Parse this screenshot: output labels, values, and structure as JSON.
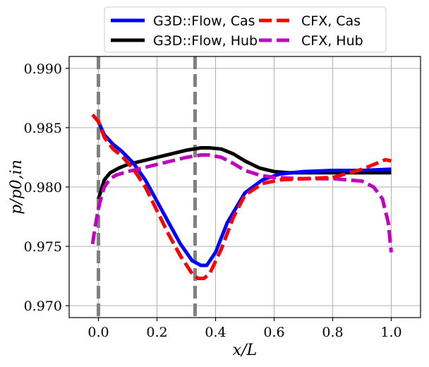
{
  "chart_data": {
    "type": "line",
    "xlabel": "x/L",
    "ylabel": "p/p0,in",
    "xlim": [
      -0.1,
      1.1
    ],
    "ylim": [
      0.969,
      0.991
    ],
    "xticks": [
      0.0,
      0.2,
      0.4,
      0.6,
      0.8,
      1.0
    ],
    "xtick_labels": [
      "0.0",
      "0.2",
      "0.4",
      "0.6",
      "0.8",
      "1.0"
    ],
    "yticks": [
      0.97,
      0.975,
      0.98,
      0.985,
      0.99
    ],
    "ytick_labels": [
      "0.970",
      "0.975",
      "0.980",
      "0.985",
      "0.990"
    ],
    "grid": true,
    "legend_position": "top-outside",
    "vertical_lines": [
      {
        "x": 0.0,
        "color": "#808080",
        "style": "dashed"
      },
      {
        "x": 0.33,
        "color": "#808080",
        "style": "dashed"
      }
    ],
    "series": [
      {
        "name": "G3D::Flow, Cas",
        "color": "#0000ff",
        "style": "solid",
        "x": [
          0.0,
          0.02,
          0.05,
          0.08,
          0.12,
          0.16,
          0.2,
          0.24,
          0.28,
          0.32,
          0.35,
          0.37,
          0.4,
          0.44,
          0.5,
          0.56,
          0.62,
          0.7,
          0.8,
          0.9,
          1.0
        ],
        "y": [
          0.9855,
          0.9844,
          0.9836,
          0.983,
          0.982,
          0.9806,
          0.9788,
          0.977,
          0.9752,
          0.9738,
          0.9734,
          0.9734,
          0.9745,
          0.977,
          0.9795,
          0.9806,
          0.9811,
          0.9813,
          0.9814,
          0.9814,
          0.9815
        ]
      },
      {
        "name": "G3D::Flow, Hub",
        "color": "#000000",
        "style": "solid",
        "x": [
          0.0,
          0.01,
          0.02,
          0.04,
          0.07,
          0.1,
          0.15,
          0.2,
          0.25,
          0.3,
          0.35,
          0.38,
          0.42,
          0.46,
          0.5,
          0.55,
          0.6,
          0.65,
          0.7,
          0.8,
          0.9,
          1.0
        ],
        "y": [
          0.979,
          0.9798,
          0.9806,
          0.9812,
          0.9816,
          0.9819,
          0.9822,
          0.9825,
          0.9828,
          0.9831,
          0.9833,
          0.9833,
          0.9832,
          0.9828,
          0.9822,
          0.9816,
          0.9813,
          0.9812,
          0.9812,
          0.9812,
          0.9812,
          0.9812
        ]
      },
      {
        "name": "CFX, Cas",
        "color": "#ff0000",
        "style": "dashed",
        "x": [
          -0.02,
          0.0,
          0.02,
          0.05,
          0.08,
          0.12,
          0.16,
          0.2,
          0.24,
          0.28,
          0.32,
          0.34,
          0.36,
          0.38,
          0.42,
          0.46,
          0.5,
          0.56,
          0.62,
          0.7,
          0.8,
          0.9,
          0.95,
          0.98,
          1.0
        ],
        "y": [
          0.9861,
          0.9855,
          0.9842,
          0.9832,
          0.9826,
          0.9815,
          0.98,
          0.978,
          0.976,
          0.9742,
          0.9727,
          0.9723,
          0.9723,
          0.9727,
          0.9748,
          0.9774,
          0.9793,
          0.9803,
          0.9806,
          0.9807,
          0.9808,
          0.9815,
          0.982,
          0.9823,
          0.9822
        ]
      },
      {
        "name": "CFX, Hub",
        "color": "#bf00bf",
        "style": "dashed",
        "x": [
          -0.02,
          -0.01,
          0.0,
          0.01,
          0.02,
          0.04,
          0.06,
          0.1,
          0.15,
          0.2,
          0.25,
          0.3,
          0.35,
          0.38,
          0.42,
          0.46,
          0.5,
          0.55,
          0.6,
          0.7,
          0.8,
          0.9,
          0.94,
          0.97,
          0.99,
          1.0
        ],
        "y": [
          0.9752,
          0.9768,
          0.9782,
          0.9792,
          0.98,
          0.9807,
          0.981,
          0.9813,
          0.9816,
          0.9819,
          0.9822,
          0.9825,
          0.9827,
          0.9827,
          0.9825,
          0.982,
          0.9814,
          0.981,
          0.9808,
          0.9807,
          0.9807,
          0.9805,
          0.98,
          0.979,
          0.977,
          0.9745
        ]
      }
    ]
  }
}
